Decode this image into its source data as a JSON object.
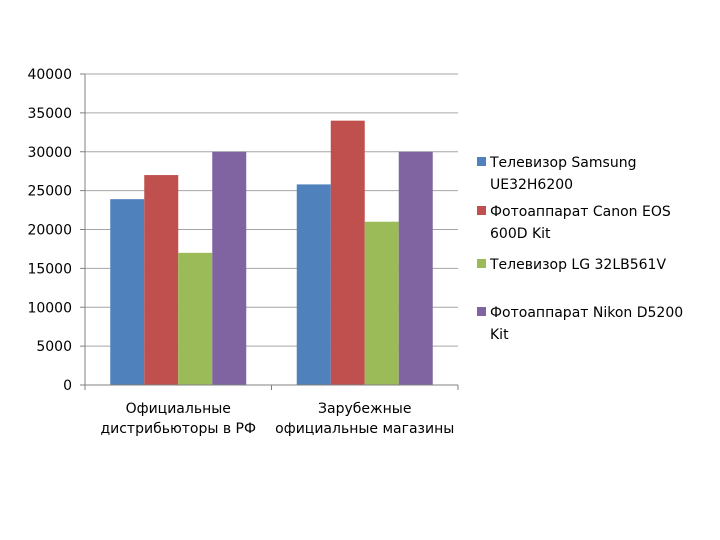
{
  "chart_data": {
    "type": "bar",
    "categories": [
      [
        "Официальные",
        "дистрибьюторы в РФ"
      ],
      [
        "Зарубежные",
        "официальные магазины"
      ]
    ],
    "series": [
      {
        "name": [
          "Телевизор Samsung",
          "UE32H6200"
        ],
        "values": [
          23900,
          25800
        ],
        "color": "#4f81bd"
      },
      {
        "name": [
          "Фотоаппарат Canon EOS",
          "600D Kit"
        ],
        "values": [
          27000,
          34000
        ],
        "color": "#c0504d"
      },
      {
        "name": [
          "Телевизор LG 32LB561V"
        ],
        "values": [
          17000,
          21000
        ],
        "color": "#9bbb59"
      },
      {
        "name": [
          "Фотоаппарат Nikon D5200",
          "Kit"
        ],
        "values": [
          30000,
          30000
        ],
        "color": "#8064a2"
      }
    ],
    "ylim": [
      0,
      40000
    ],
    "yticks": [
      0,
      5000,
      10000,
      15000,
      20000,
      25000,
      30000,
      35000,
      40000
    ],
    "grid": true,
    "legend": "right"
  }
}
